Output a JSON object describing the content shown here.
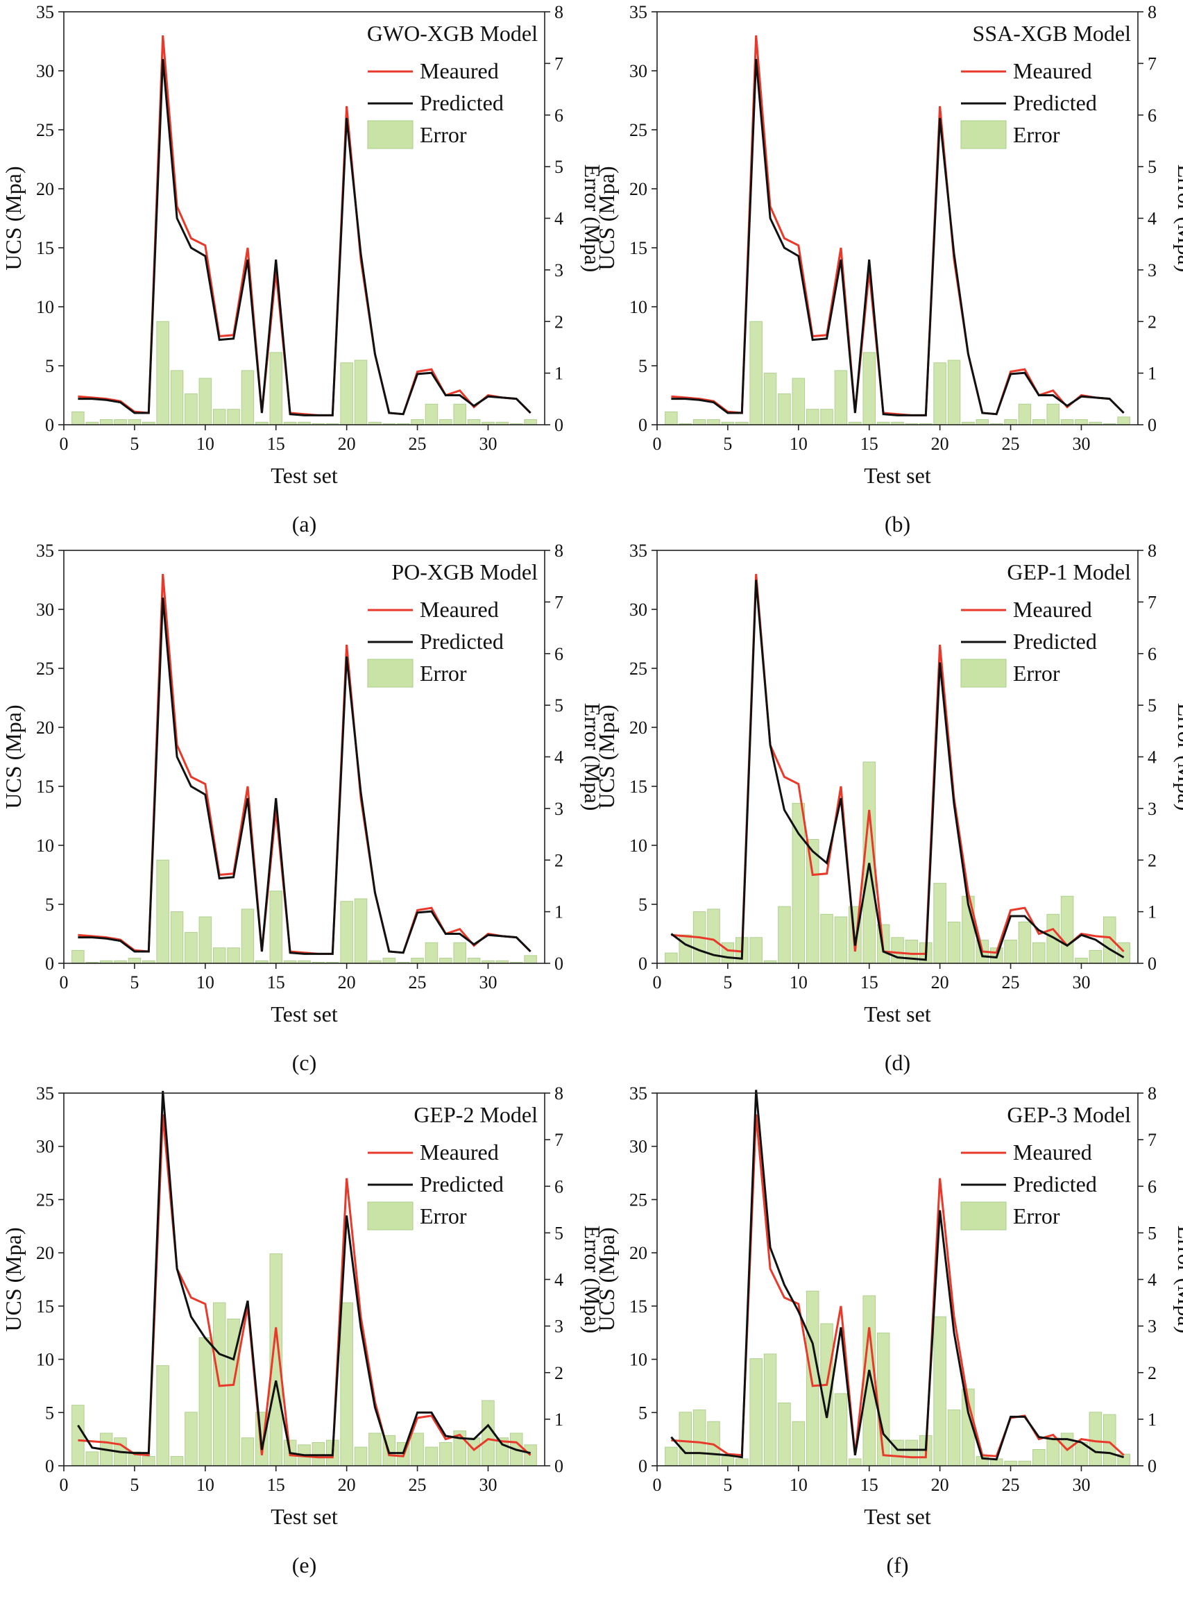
{
  "colors": {
    "measured": "#e8392a",
    "predicted": "#111111",
    "bar_fill": "#c9e3a6",
    "bar_stroke": "#a8cc84",
    "axis": "#222222"
  },
  "chart_data": [
    {
      "panel_label": "(a)",
      "type": "bar+line",
      "title": "GWO-XGB Model",
      "xlabel": "Test set",
      "ylabel": "UCS (Mpa)",
      "y2label": "Error (Mpa)",
      "xlim": [
        0,
        34
      ],
      "ylim": [
        0,
        35
      ],
      "y2lim": [
        0,
        8
      ],
      "xticks": [
        0,
        5,
        10,
        15,
        20,
        25,
        30
      ],
      "yticks": [
        0,
        5,
        10,
        15,
        20,
        25,
        30,
        35
      ],
      "y2ticks": [
        0,
        1,
        2,
        3,
        4,
        5,
        6,
        7,
        8
      ],
      "legend": {
        "measured": "Meaured",
        "predicted": "Predicted",
        "error": "Error"
      },
      "x": [
        1,
        2,
        3,
        4,
        5,
        6,
        7,
        8,
        9,
        10,
        11,
        12,
        13,
        14,
        15,
        16,
        17,
        18,
        19,
        20,
        21,
        22,
        23,
        24,
        25,
        26,
        27,
        28,
        29,
        30,
        31,
        32,
        33
      ],
      "series": [
        {
          "name": "Meaured",
          "values": [
            2.4,
            2.3,
            2.2,
            2.0,
            1.1,
            1.0,
            33.0,
            18.5,
            15.8,
            15.2,
            7.5,
            7.6,
            15.0,
            1.0,
            13.0,
            1.0,
            0.9,
            0.8,
            0.8,
            27.0,
            14.0,
            6.0,
            1.0,
            0.9,
            4.5,
            4.7,
            2.5,
            2.9,
            1.5,
            2.5,
            2.3,
            2.2,
            1.0
          ]
        },
        {
          "name": "Predicted",
          "values": [
            2.2,
            2.2,
            2.1,
            1.9,
            1.0,
            1.0,
            31.0,
            17.5,
            15.0,
            14.3,
            7.2,
            7.3,
            14.0,
            1.0,
            14.0,
            0.9,
            0.8,
            0.8,
            0.8,
            26.0,
            14.5,
            6.0,
            1.0,
            0.9,
            4.3,
            4.4,
            2.5,
            2.5,
            1.6,
            2.4,
            2.3,
            2.2,
            1.0
          ]
        },
        {
          "name": "Error",
          "values": [
            0.25,
            0.05,
            0.1,
            0.1,
            0.1,
            0.05,
            2.0,
            1.05,
            0.6,
            0.9,
            0.3,
            0.3,
            1.05,
            0.05,
            1.4,
            0.05,
            0.05,
            0.02,
            0.02,
            1.2,
            1.25,
            0.05,
            0.02,
            0.02,
            0.1,
            0.4,
            0.1,
            0.4,
            0.1,
            0.05,
            0.05,
            0.02,
            0.1
          ]
        }
      ]
    },
    {
      "panel_label": "(b)",
      "type": "bar+line",
      "title": "SSA-XGB Model",
      "xlabel": "Test set",
      "ylabel": "UCS (Mpa)",
      "y2label": "Error (Mpa)",
      "xlim": [
        0,
        34
      ],
      "ylim": [
        0,
        35
      ],
      "y2lim": [
        0,
        8
      ],
      "xticks": [
        0,
        5,
        10,
        15,
        20,
        25,
        30
      ],
      "yticks": [
        0,
        5,
        10,
        15,
        20,
        25,
        30,
        35
      ],
      "y2ticks": [
        0,
        1,
        2,
        3,
        4,
        5,
        6,
        7,
        8
      ],
      "legend": {
        "measured": "Meaured",
        "predicted": "Predicted",
        "error": "Error"
      },
      "x": [
        1,
        2,
        3,
        4,
        5,
        6,
        7,
        8,
        9,
        10,
        11,
        12,
        13,
        14,
        15,
        16,
        17,
        18,
        19,
        20,
        21,
        22,
        23,
        24,
        25,
        26,
        27,
        28,
        29,
        30,
        31,
        32,
        33
      ],
      "series": [
        {
          "name": "Meaured",
          "values": [
            2.4,
            2.3,
            2.2,
            2.0,
            1.1,
            1.0,
            33.0,
            18.5,
            15.8,
            15.2,
            7.5,
            7.6,
            15.0,
            1.0,
            13.0,
            1.0,
            0.9,
            0.8,
            0.8,
            27.0,
            14.0,
            6.0,
            1.0,
            0.9,
            4.5,
            4.7,
            2.5,
            2.9,
            1.5,
            2.5,
            2.3,
            2.2,
            1.0
          ]
        },
        {
          "name": "Predicted",
          "values": [
            2.2,
            2.2,
            2.1,
            1.9,
            1.0,
            1.0,
            31.0,
            17.5,
            15.0,
            14.3,
            7.2,
            7.3,
            14.0,
            1.0,
            14.0,
            0.9,
            0.8,
            0.8,
            0.8,
            26.0,
            14.5,
            6.0,
            1.0,
            0.9,
            4.3,
            4.4,
            2.5,
            2.5,
            1.6,
            2.4,
            2.3,
            2.2,
            1.0
          ]
        },
        {
          "name": "Error",
          "values": [
            0.25,
            0.02,
            0.1,
            0.1,
            0.05,
            0.05,
            2.0,
            1.0,
            0.6,
            0.9,
            0.3,
            0.3,
            1.05,
            0.05,
            1.4,
            0.05,
            0.05,
            0.02,
            0.02,
            1.2,
            1.25,
            0.05,
            0.1,
            0.02,
            0.1,
            0.4,
            0.1,
            0.4,
            0.1,
            0.1,
            0.05,
            0.02,
            0.15
          ]
        }
      ]
    },
    {
      "panel_label": "(c)",
      "type": "bar+line",
      "title": "PO-XGB Model",
      "xlabel": "Test set",
      "ylabel": "UCS (Mpa)",
      "y2label": "Error (Mpa)",
      "xlim": [
        0,
        34
      ],
      "ylim": [
        0,
        35
      ],
      "y2lim": [
        0,
        8
      ],
      "xticks": [
        0,
        5,
        10,
        15,
        20,
        25,
        30
      ],
      "yticks": [
        0,
        5,
        10,
        15,
        20,
        25,
        30,
        35
      ],
      "y2ticks": [
        0,
        1,
        2,
        3,
        4,
        5,
        6,
        7,
        8
      ],
      "legend": {
        "measured": "Meaured",
        "predicted": "Predicted",
        "error": "Error"
      },
      "x": [
        1,
        2,
        3,
        4,
        5,
        6,
        7,
        8,
        9,
        10,
        11,
        12,
        13,
        14,
        15,
        16,
        17,
        18,
        19,
        20,
        21,
        22,
        23,
        24,
        25,
        26,
        27,
        28,
        29,
        30,
        31,
        32,
        33
      ],
      "series": [
        {
          "name": "Meaured",
          "values": [
            2.4,
            2.3,
            2.2,
            2.0,
            1.1,
            1.0,
            33.0,
            18.5,
            15.8,
            15.2,
            7.5,
            7.6,
            15.0,
            1.0,
            13.0,
            1.0,
            0.9,
            0.8,
            0.8,
            27.0,
            14.0,
            6.0,
            1.0,
            0.9,
            4.5,
            4.7,
            2.5,
            2.9,
            1.5,
            2.5,
            2.3,
            2.2,
            1.0
          ]
        },
        {
          "name": "Predicted",
          "values": [
            2.2,
            2.2,
            2.1,
            1.9,
            1.0,
            1.0,
            31.0,
            17.5,
            15.0,
            14.3,
            7.2,
            7.3,
            14.0,
            1.0,
            14.0,
            0.9,
            0.8,
            0.8,
            0.8,
            26.0,
            14.5,
            6.0,
            1.0,
            0.9,
            4.3,
            4.4,
            2.5,
            2.5,
            1.6,
            2.4,
            2.3,
            2.2,
            1.0
          ]
        },
        {
          "name": "Error",
          "values": [
            0.25,
            0.02,
            0.05,
            0.05,
            0.1,
            0.05,
            2.0,
            1.0,
            0.6,
            0.9,
            0.3,
            0.3,
            1.05,
            0.05,
            1.4,
            0.05,
            0.05,
            0.02,
            0.02,
            1.2,
            1.25,
            0.05,
            0.1,
            0.02,
            0.1,
            0.4,
            0.1,
            0.4,
            0.1,
            0.05,
            0.05,
            0.02,
            0.15
          ]
        }
      ]
    },
    {
      "panel_label": "(d)",
      "type": "bar+line",
      "title": "GEP-1 Model",
      "xlabel": "Test set",
      "ylabel": "UCS (Mpa)",
      "y2label": "Error (Mpa)",
      "xlim": [
        0,
        34
      ],
      "ylim": [
        0,
        35
      ],
      "y2lim": [
        0,
        8
      ],
      "xticks": [
        0,
        5,
        10,
        15,
        20,
        25,
        30
      ],
      "yticks": [
        0,
        5,
        10,
        15,
        20,
        25,
        30,
        35
      ],
      "y2ticks": [
        0,
        1,
        2,
        3,
        4,
        5,
        6,
        7,
        8
      ],
      "legend": {
        "measured": "Meaured",
        "predicted": "Predicted",
        "error": "Error"
      },
      "x": [
        1,
        2,
        3,
        4,
        5,
        6,
        7,
        8,
        9,
        10,
        11,
        12,
        13,
        14,
        15,
        16,
        17,
        18,
        19,
        20,
        21,
        22,
        23,
        24,
        25,
        26,
        27,
        28,
        29,
        30,
        31,
        32,
        33
      ],
      "series": [
        {
          "name": "Meaured",
          "values": [
            2.4,
            2.3,
            2.2,
            2.0,
            1.1,
            1.0,
            33.0,
            18.5,
            15.8,
            15.2,
            7.5,
            7.6,
            15.0,
            1.0,
            13.0,
            1.0,
            0.9,
            0.8,
            0.8,
            27.0,
            14.0,
            6.0,
            1.0,
            0.9,
            4.5,
            4.7,
            2.5,
            2.9,
            1.5,
            2.5,
            2.3,
            2.2,
            1.0
          ]
        },
        {
          "name": "Predicted",
          "values": [
            2.5,
            1.6,
            1.1,
            0.7,
            0.5,
            0.4,
            32.5,
            18.5,
            13.0,
            11.0,
            9.5,
            8.5,
            14.0,
            1.5,
            8.5,
            1.0,
            0.5,
            0.4,
            0.3,
            25.5,
            13.5,
            5.0,
            0.6,
            0.5,
            4.0,
            4.0,
            2.8,
            2.2,
            1.5,
            2.4,
            2.0,
            1.2,
            0.5
          ]
        },
        {
          "name": "Error",
          "values": [
            0.2,
            0.55,
            1.0,
            1.05,
            0.4,
            0.5,
            0.5,
            0.05,
            1.1,
            3.1,
            2.4,
            0.95,
            0.9,
            1.1,
            3.9,
            0.75,
            0.5,
            0.45,
            0.4,
            1.55,
            0.8,
            1.3,
            0.45,
            0.3,
            0.45,
            0.8,
            0.4,
            0.95,
            1.3,
            0.1,
            0.25,
            0.9,
            0.4
          ]
        }
      ]
    },
    {
      "panel_label": "(e)",
      "type": "bar+line",
      "title": "GEP-2 Model",
      "xlabel": "Test set",
      "ylabel": "UCS (Mpa)",
      "y2label": "Error (Mpa)",
      "xlim": [
        0,
        34
      ],
      "ylim": [
        0,
        35
      ],
      "y2lim": [
        0,
        8
      ],
      "xticks": [
        0,
        5,
        10,
        15,
        20,
        25,
        30
      ],
      "yticks": [
        0,
        5,
        10,
        15,
        20,
        25,
        30,
        35
      ],
      "y2ticks": [
        0,
        1,
        2,
        3,
        4,
        5,
        6,
        7,
        8
      ],
      "legend": {
        "measured": "Meaured",
        "predicted": "Predicted",
        "error": "Error"
      },
      "x": [
        1,
        2,
        3,
        4,
        5,
        6,
        7,
        8,
        9,
        10,
        11,
        12,
        13,
        14,
        15,
        16,
        17,
        18,
        19,
        20,
        21,
        22,
        23,
        24,
        25,
        26,
        27,
        28,
        29,
        30,
        31,
        32,
        33
      ],
      "series": [
        {
          "name": "Meaured",
          "values": [
            2.4,
            2.3,
            2.2,
            2.0,
            1.1,
            1.0,
            33.0,
            18.5,
            15.8,
            15.2,
            7.5,
            7.6,
            15.0,
            1.0,
            13.0,
            1.0,
            0.9,
            0.8,
            0.8,
            27.0,
            14.0,
            6.0,
            1.0,
            0.9,
            4.5,
            4.7,
            2.5,
            2.9,
            1.5,
            2.5,
            2.3,
            2.2,
            1.0
          ]
        },
        {
          "name": "Predicted",
          "values": [
            3.8,
            1.7,
            1.5,
            1.3,
            1.2,
            1.2,
            35.2,
            18.5,
            14.0,
            12.0,
            10.5,
            10.0,
            15.5,
            1.5,
            8.0,
            1.2,
            1.0,
            1.0,
            1.0,
            23.5,
            13.0,
            5.5,
            1.2,
            1.2,
            5.0,
            5.0,
            2.8,
            2.6,
            2.5,
            3.8,
            2.0,
            1.5,
            1.2
          ]
        },
        {
          "name": "Error",
          "values": [
            1.3,
            0.3,
            0.7,
            0.6,
            0.3,
            0.2,
            2.15,
            0.2,
            1.15,
            2.75,
            3.5,
            3.15,
            0.6,
            1.15,
            4.55,
            0.55,
            0.45,
            0.5,
            0.55,
            3.5,
            0.4,
            0.7,
            0.65,
            0.5,
            0.7,
            0.4,
            0.5,
            0.75,
            0.6,
            1.4,
            0.6,
            0.7,
            0.45
          ]
        }
      ]
    },
    {
      "panel_label": "(f)",
      "type": "bar+line",
      "title": "GEP-3 Model",
      "xlabel": "Test set",
      "ylabel": "UCS (Mpa)",
      "y2label": "Error (Mpa)",
      "xlim": [
        0,
        34
      ],
      "ylim": [
        0,
        35
      ],
      "y2lim": [
        0,
        8
      ],
      "xticks": [
        0,
        5,
        10,
        15,
        20,
        25,
        30
      ],
      "yticks": [
        0,
        5,
        10,
        15,
        20,
        25,
        30,
        35
      ],
      "y2ticks": [
        0,
        1,
        2,
        3,
        4,
        5,
        6,
        7,
        8
      ],
      "legend": {
        "measured": "Meaured",
        "predicted": "Predicted",
        "error": "Error"
      },
      "x": [
        1,
        2,
        3,
        4,
        5,
        6,
        7,
        8,
        9,
        10,
        11,
        12,
        13,
        14,
        15,
        16,
        17,
        18,
        19,
        20,
        21,
        22,
        23,
        24,
        25,
        26,
        27,
        28,
        29,
        30,
        31,
        32,
        33
      ],
      "series": [
        {
          "name": "Meaured",
          "values": [
            2.4,
            2.3,
            2.2,
            2.0,
            1.1,
            1.0,
            33.0,
            18.5,
            15.8,
            15.2,
            7.5,
            7.6,
            15.0,
            1.0,
            13.0,
            1.0,
            0.9,
            0.8,
            0.8,
            27.0,
            14.0,
            6.0,
            1.0,
            0.9,
            4.5,
            4.7,
            2.5,
            2.9,
            1.5,
            2.5,
            2.3,
            2.2,
            1.0
          ]
        },
        {
          "name": "Predicted",
          "values": [
            2.7,
            1.2,
            1.2,
            1.1,
            1.0,
            0.8,
            35.3,
            20.5,
            17.0,
            14.5,
            11.5,
            4.5,
            13.0,
            1.0,
            9.0,
            3.0,
            1.5,
            1.5,
            1.5,
            24.0,
            12.5,
            5.0,
            0.7,
            0.6,
            4.6,
            4.6,
            2.7,
            2.5,
            2.5,
            2.2,
            1.3,
            1.2,
            0.8
          ]
        },
        {
          "name": "Error",
          "values": [
            0.4,
            1.15,
            1.2,
            0.95,
            0.2,
            0.15,
            2.3,
            2.4,
            1.35,
            0.95,
            3.75,
            3.05,
            1.55,
            0.15,
            3.65,
            2.85,
            0.55,
            0.55,
            0.65,
            3.2,
            1.2,
            1.65,
            0.2,
            0.15,
            0.1,
            0.1,
            0.35,
            0.6,
            0.7,
            0.5,
            1.15,
            1.1,
            0.25
          ]
        }
      ]
    }
  ]
}
